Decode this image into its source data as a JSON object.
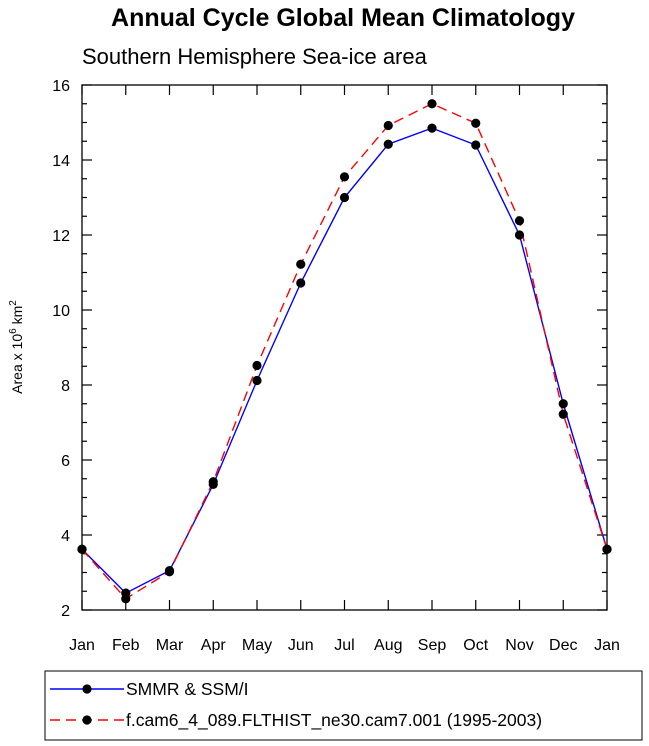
{
  "chart_data": {
    "type": "line",
    "title": "Annual Cycle Global Mean Climatology",
    "subtitle": "Southern Hemisphere Sea-ice area",
    "ylabel": {
      "prefix": "Area x 10",
      "exp1": "6",
      "mid": " km",
      "exp2": "2"
    },
    "categories": [
      "Jan",
      "Feb",
      "Mar",
      "Apr",
      "May",
      "Jun",
      "Jul",
      "Aug",
      "Sep",
      "Oct",
      "Nov",
      "Dec",
      "Jan"
    ],
    "ylim": [
      2,
      16
    ],
    "yticks": [
      2,
      4,
      6,
      8,
      10,
      12,
      14,
      16
    ],
    "series": [
      {
        "name": "SMMR & SSM/I",
        "color": "#0000ff",
        "dash": "solid",
        "values": [
          3.62,
          2.45,
          3.05,
          5.35,
          8.12,
          10.72,
          13.0,
          14.42,
          14.85,
          14.4,
          12.0,
          7.5,
          3.62
        ]
      },
      {
        "name": "f.cam6_4_089.FLTHIST_ne30.cam7.001 (1995-2003)",
        "color": "#ff0000",
        "dash": "dashed",
        "values": [
          3.62,
          2.3,
          3.02,
          5.42,
          8.52,
          11.22,
          13.55,
          14.92,
          15.5,
          14.98,
          12.38,
          7.22,
          3.62
        ]
      }
    ]
  }
}
